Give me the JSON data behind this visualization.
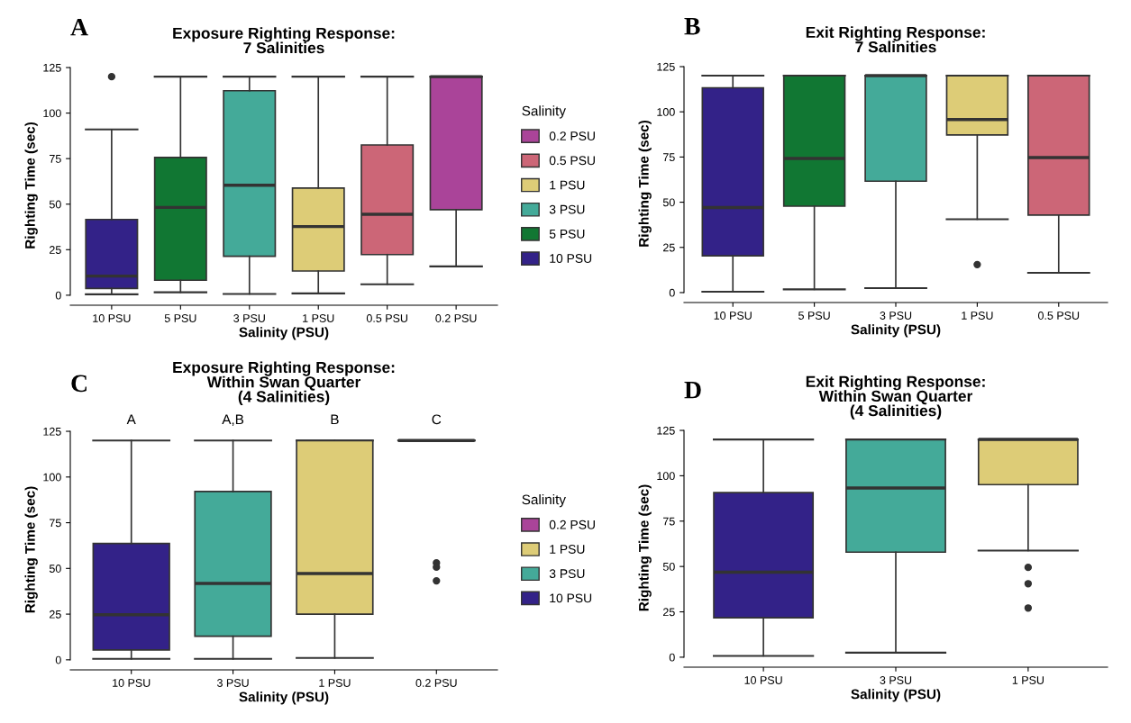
{
  "chart_data": [
    {
      "type": "box",
      "title": "Exposure Righting Response:\n7 Salinities",
      "xlabel": "Salinity (PSU)",
      "ylabel": "Righting Time (sec)",
      "legend_title": "Salinity",
      "legend": "right",
      "annotations": [
        "A"
      ],
      "categories": [
        "10 PSU",
        "5 PSU",
        "3 PSU",
        "1 PSU",
        "0.5 PSU",
        "0.2 PSU"
      ],
      "series": [
        {
          "name": "0.2 PSU",
          "color": "#aa4499",
          "boxes": [
            null,
            null,
            null,
            null,
            null,
            {
              "low": 15.8,
              "q1": 47,
              "median": 120,
              "q3": 120,
              "high": 120
            }
          ]
        },
        {
          "name": "0.5 PSU",
          "color": "#cc6677",
          "boxes": [
            null,
            null,
            null,
            null,
            {
              "low": 6,
              "q1": 22.3,
              "median": 44.4,
              "q3": 82.5,
              "high": 120
            },
            null
          ]
        },
        {
          "name": "1 PSU",
          "color": "#ddcc77",
          "boxes": [
            null,
            null,
            null,
            {
              "low": 1,
              "q1": 13.3,
              "median": 37.7,
              "q3": 58.8,
              "high": 120
            },
            null,
            null
          ]
        },
        {
          "name": "3 PSU",
          "color": "#44aa99",
          "boxes": [
            null,
            null,
            {
              "low": 0.7,
              "q1": 21.4,
              "median": 60.4,
              "q3": 112.3,
              "high": 120
            },
            null,
            null,
            null
          ]
        },
        {
          "name": "5 PSU",
          "color": "#117733",
          "boxes": [
            null,
            {
              "low": 1.6,
              "q1": 8.2,
              "median": 48.2,
              "q3": 75.6,
              "high": 120
            },
            null,
            null,
            null,
            null
          ]
        },
        {
          "name": "10 PSU",
          "color": "#332288",
          "boxes": [
            {
              "low": 0.5,
              "q1": 3.7,
              "median": 10.5,
              "q3": 41.6,
              "high": 91,
              "outliers": [
                120
              ]
            },
            null,
            null,
            null,
            null,
            null
          ]
        }
      ],
      "ylim": [
        -5.5,
        126
      ],
      "yticks": [
        0,
        25,
        50,
        75,
        100,
        125
      ],
      "grid": false
    },
    {
      "type": "box",
      "title": "Exit Righting Response:\n7 Salinities",
      "xlabel": "Salinity (PSU)",
      "ylabel": "Righting Time (sec)",
      "annotations": [
        "B"
      ],
      "categories": [
        "10 PSU",
        "5 PSU",
        "3 PSU",
        "1 PSU",
        "0.5 PSU"
      ],
      "colors": [
        "#332288",
        "#117733",
        "#44aa99",
        "#ddcc77",
        "#cc6677"
      ],
      "boxes": [
        {
          "low": 0.5,
          "q1": 20.3,
          "median": 47,
          "q3": 113.3,
          "high": 120
        },
        {
          "low": 1.8,
          "q1": 47.8,
          "median": 74.2,
          "q3": 120,
          "high": 120
        },
        {
          "low": 2.5,
          "q1": 61.6,
          "median": 120,
          "q3": 120,
          "high": 120
        },
        {
          "low": 40.6,
          "q1": 87.2,
          "median": 95.7,
          "q3": 120,
          "high": 120,
          "outliers": [
            15.5
          ]
        },
        {
          "low": 10.9,
          "q1": 42.9,
          "median": 74.7,
          "q3": 120,
          "high": 120
        }
      ],
      "ylim": [
        -5.5,
        126
      ],
      "yticks": [
        0,
        25,
        50,
        75,
        100,
        125
      ],
      "grid": false
    },
    {
      "type": "box",
      "title": "Exposure Righting Response:\nWithin Swan Quarter\n(4 Salinities)",
      "xlabel": "Salinity (PSU)",
      "ylabel": "Righting Time (sec)",
      "legend_title": "Salinity",
      "legend": "right",
      "annotations": [
        "C",
        "A",
        "A,B",
        "B",
        "C"
      ],
      "categories": [
        "10 PSU",
        "3 PSU",
        "1 PSU",
        "0.2 PSU"
      ],
      "series": [
        {
          "name": "0.2 PSU",
          "color": "#aa4499",
          "boxes": [
            null,
            null,
            null,
            {
              "low": 120,
              "q1": 120,
              "median": 120,
              "q3": 120,
              "high": 120,
              "outliers": [
                53,
                50.7,
                43.2
              ]
            }
          ]
        },
        {
          "name": "1 PSU",
          "color": "#ddcc77",
          "boxes": [
            null,
            null,
            {
              "low": 1,
              "q1": 25,
              "median": 47.2,
              "q3": 120,
              "high": 120
            },
            null
          ]
        },
        {
          "name": "3 PSU",
          "color": "#44aa99",
          "boxes": [
            null,
            {
              "low": 0.5,
              "q1": 12.9,
              "median": 41.8,
              "q3": 92.1,
              "high": 120
            },
            null,
            null
          ]
        },
        {
          "name": "10 PSU",
          "color": "#332288",
          "boxes": [
            {
              "low": 0.5,
              "q1": 5.4,
              "median": 24.7,
              "q3": 63.6,
              "high": 120
            },
            null,
            null,
            null
          ]
        }
      ],
      "ylim": [
        -5.5,
        126
      ],
      "yticks": [
        0,
        25,
        50,
        75,
        100,
        125
      ],
      "grid": false
    },
    {
      "type": "box",
      "title": "Exit Righting Response:\nWithin Swan Quarter\n(4 Salinities)",
      "xlabel": "Salinity (PSU)",
      "ylabel": "Righting Time (sec)",
      "annotations": [
        "D"
      ],
      "categories": [
        "10 PSU",
        "3 PSU",
        "1 PSU"
      ],
      "colors": [
        "#332288",
        "#44aa99",
        "#ddcc77"
      ],
      "boxes": [
        {
          "low": 0.7,
          "q1": 21.7,
          "median": 46.8,
          "q3": 90.7,
          "high": 120
        },
        {
          "low": 2.5,
          "q1": 57.9,
          "median": 93.3,
          "q3": 120,
          "high": 120
        },
        {
          "low": 58.8,
          "q1": 95.1,
          "median": 120,
          "q3": 120,
          "high": 120,
          "outliers": [
            49.5,
            40.5,
            27.1
          ]
        }
      ],
      "ylim": [
        -5.5,
        126
      ],
      "yticks": [
        0,
        25,
        50,
        75,
        100,
        125
      ],
      "grid": false
    }
  ]
}
